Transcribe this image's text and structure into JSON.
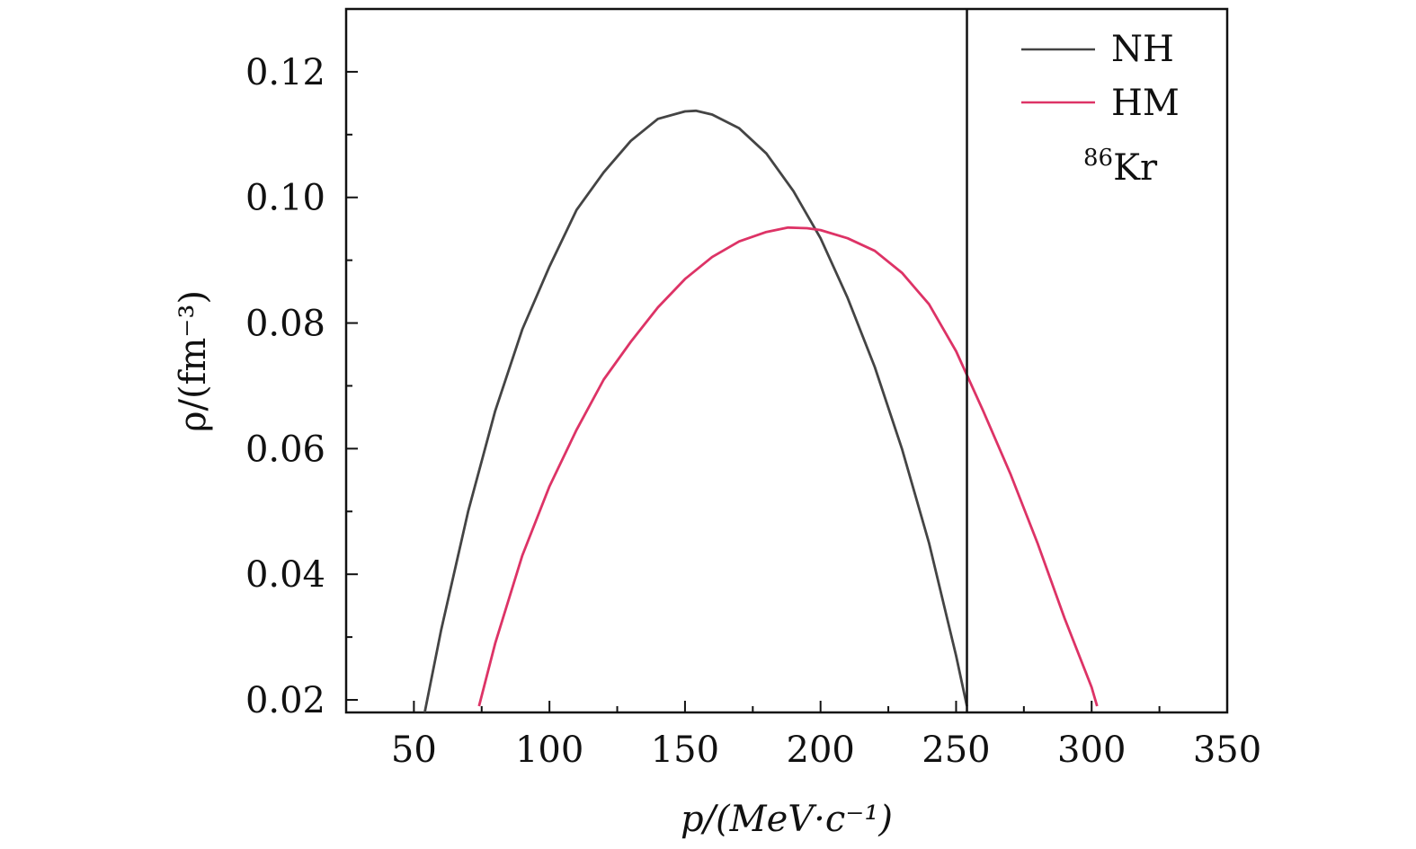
{
  "chart_data": {
    "type": "line",
    "xlabel": "p/(MeV·c⁻¹)",
    "ylabel": "ρ/(fm⁻³)",
    "xlim": [
      25,
      350
    ],
    "ylim": [
      0.018,
      0.13
    ],
    "x_ticks": [
      "50",
      "100",
      "150",
      "200",
      "250",
      "300",
      "350"
    ],
    "y_ticks": [
      "0.02",
      "0.04",
      "0.06",
      "0.08",
      "0.10",
      "0.12"
    ],
    "grid": false,
    "legend_position": "top-right",
    "annotation": "86Kr",
    "vertical_line_x": 254,
    "series": [
      {
        "name": "NH",
        "color": "#444444",
        "x": [
          54,
          60,
          70,
          80,
          90,
          100,
          110,
          120,
          130,
          140,
          150,
          154,
          160,
          170,
          180,
          190,
          200,
          210,
          220,
          230,
          240,
          250,
          254
        ],
        "y": [
          0.018,
          0.031,
          0.05,
          0.066,
          0.079,
          0.089,
          0.098,
          0.104,
          0.109,
          0.1125,
          0.1137,
          0.1138,
          0.1132,
          0.111,
          0.107,
          0.101,
          0.0935,
          0.084,
          0.073,
          0.06,
          0.045,
          0.027,
          0.019
        ]
      },
      {
        "name": "HM",
        "color": "#dd3366",
        "x": [
          74,
          80,
          90,
          100,
          110,
          120,
          130,
          140,
          150,
          160,
          170,
          180,
          188,
          195,
          200,
          210,
          220,
          230,
          240,
          250,
          260,
          270,
          280,
          290,
          300,
          302
        ],
        "y": [
          0.019,
          0.029,
          0.043,
          0.054,
          0.063,
          0.071,
          0.077,
          0.0825,
          0.087,
          0.0905,
          0.093,
          0.0945,
          0.0952,
          0.0951,
          0.0948,
          0.0935,
          0.0915,
          0.088,
          0.083,
          0.0755,
          0.066,
          0.056,
          0.045,
          0.033,
          0.022,
          0.019
        ]
      }
    ]
  }
}
